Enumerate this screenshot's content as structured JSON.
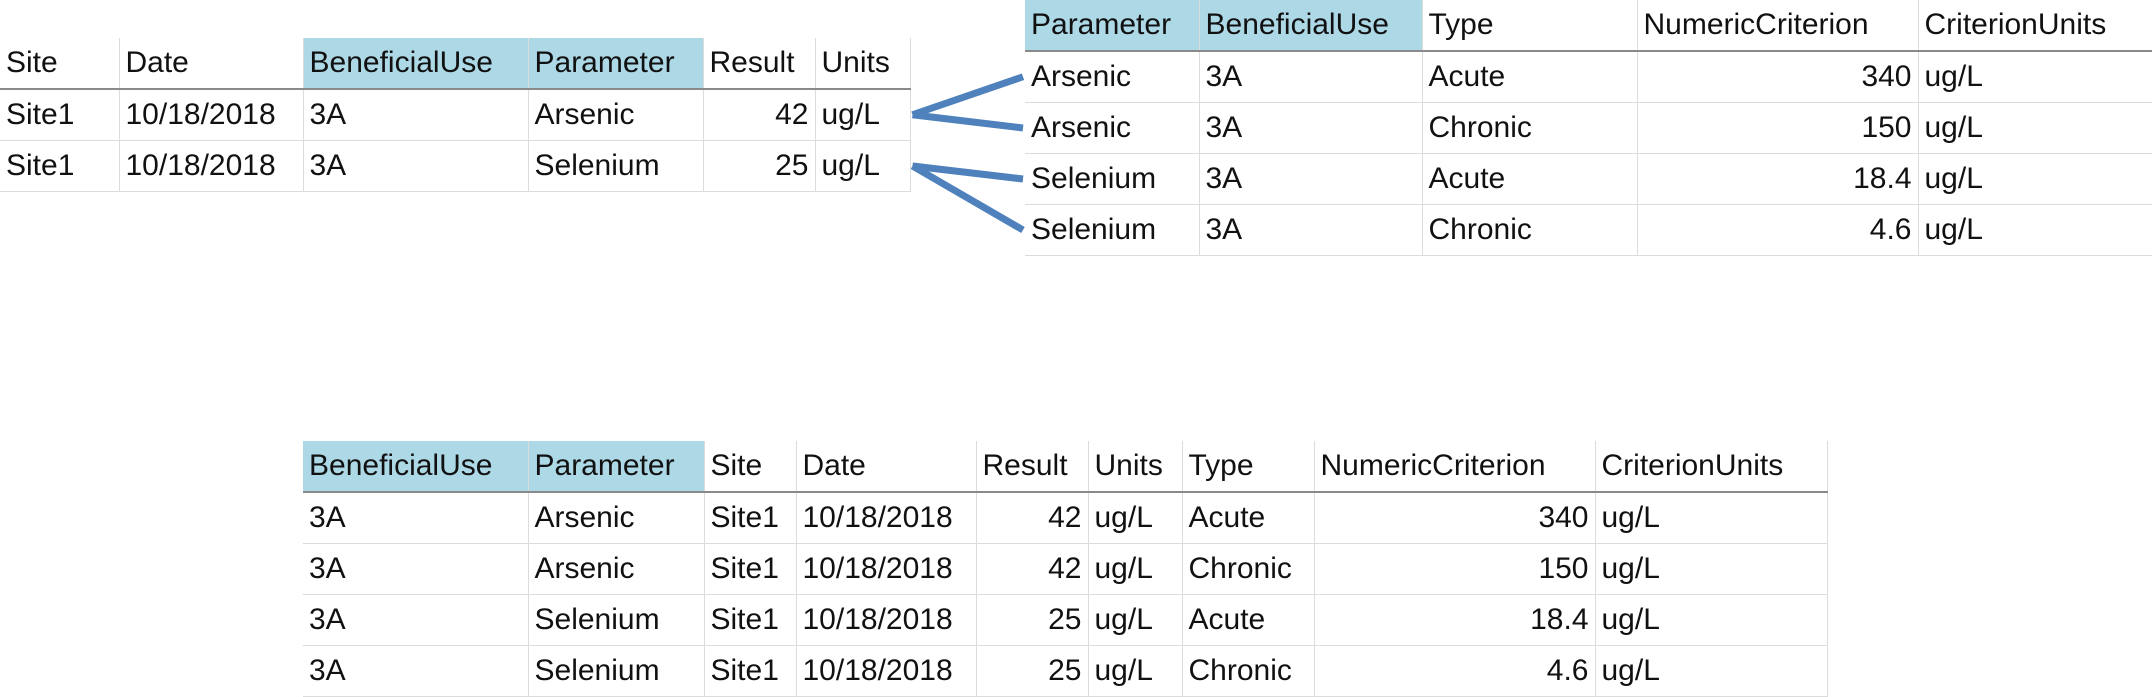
{
  "observations": {
    "columns": [
      {
        "label": "Site",
        "key": false,
        "numeric": false
      },
      {
        "label": "Date",
        "key": false,
        "numeric": false
      },
      {
        "label": "BeneficialUse",
        "key": true,
        "numeric": false
      },
      {
        "label": "Parameter",
        "key": true,
        "numeric": false
      },
      {
        "label": "Result",
        "key": false,
        "numeric": true
      },
      {
        "label": "Units",
        "key": false,
        "numeric": false
      }
    ],
    "rows": [
      [
        "Site1",
        "10/18/2018",
        "3A",
        "Arsenic",
        "42",
        "ug/L"
      ],
      [
        "Site1",
        "10/18/2018",
        "3A",
        "Selenium",
        "25",
        "ug/L"
      ]
    ]
  },
  "criteria": {
    "columns": [
      {
        "label": "Parameter",
        "key": true,
        "numeric": false
      },
      {
        "label": "BeneficialUse",
        "key": true,
        "numeric": false
      },
      {
        "label": "Type",
        "key": false,
        "numeric": false
      },
      {
        "label": "NumericCriterion",
        "key": false,
        "numeric": true
      },
      {
        "label": "CriterionUnits",
        "key": false,
        "numeric": false
      }
    ],
    "rows": [
      [
        "Arsenic",
        "3A",
        "Acute",
        "340",
        "ug/L"
      ],
      [
        "Arsenic",
        "3A",
        "Chronic",
        "150",
        "ug/L"
      ],
      [
        "Selenium",
        "3A",
        "Acute",
        "18.4",
        "ug/L"
      ],
      [
        "Selenium",
        "3A",
        "Chronic",
        "4.6",
        "ug/L"
      ]
    ]
  },
  "joined": {
    "columns": [
      {
        "label": "BeneficialUse",
        "key": true,
        "numeric": false
      },
      {
        "label": "Parameter",
        "key": true,
        "numeric": false
      },
      {
        "label": "Site",
        "key": false,
        "numeric": false
      },
      {
        "label": "Date",
        "key": false,
        "numeric": false
      },
      {
        "label": "Result",
        "key": false,
        "numeric": true
      },
      {
        "label": "Units",
        "key": false,
        "numeric": false
      },
      {
        "label": "Type",
        "key": false,
        "numeric": false
      },
      {
        "label": "NumericCriterion",
        "key": false,
        "numeric": true
      },
      {
        "label": "CriterionUnits",
        "key": false,
        "numeric": false
      }
    ],
    "rows": [
      [
        "3A",
        "Arsenic",
        "Site1",
        "10/18/2018",
        "42",
        "ug/L",
        "Acute",
        "340",
        "ug/L"
      ],
      [
        "3A",
        "Arsenic",
        "Site1",
        "10/18/2018",
        "42",
        "ug/L",
        "Chronic",
        "150",
        "ug/L"
      ],
      [
        "3A",
        "Selenium",
        "Site1",
        "10/18/2018",
        "25",
        "ug/L",
        "Acute",
        "18.4",
        "ug/L"
      ],
      [
        "3A",
        "Selenium",
        "Site1",
        "10/18/2018",
        "25",
        "ug/L",
        "Chronic",
        "4.6",
        "ug/L"
      ]
    ]
  },
  "links": [
    {
      "from_row": 0,
      "to_row": 0
    },
    {
      "from_row": 0,
      "to_row": 1
    },
    {
      "from_row": 1,
      "to_row": 2
    },
    {
      "from_row": 1,
      "to_row": 3
    }
  ],
  "colors": {
    "key_header": "#add8e6",
    "connector": "#4f81bd"
  }
}
